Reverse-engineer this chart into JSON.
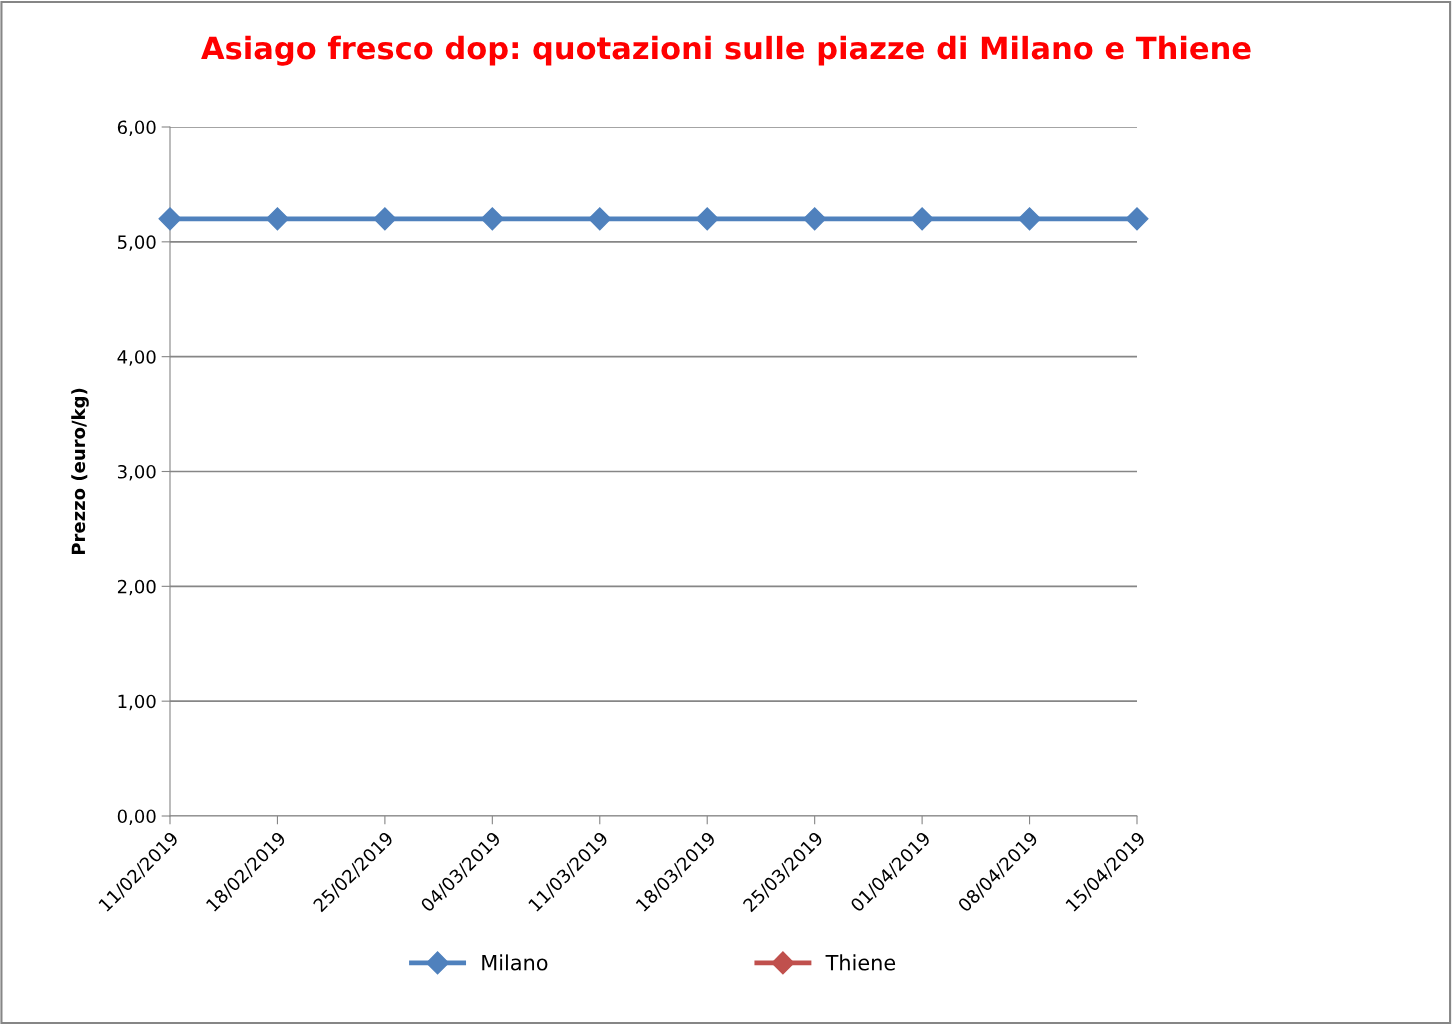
{
  "chart_data": {
    "type": "line",
    "title": "Asiago fresco dop: quotazioni sulle piazze di Milano e Thiene",
    "ylabel": "Prezzo (euro/kg)",
    "categories": [
      "11/02/2019",
      "18/02/2019",
      "25/02/2019",
      "04/03/2019",
      "11/03/2019",
      "18/03/2019",
      "25/03/2019",
      "01/04/2019",
      "08/04/2019",
      "15/04/2019"
    ],
    "series": [
      {
        "name": "Milano",
        "color": "#4f81bd",
        "values": [
          5.2,
          5.2,
          5.2,
          5.2,
          5.2,
          5.2,
          5.2,
          5.2,
          5.2,
          5.2
        ]
      },
      {
        "name": "Thiene",
        "color": "#c0504d",
        "values": [
          null,
          null,
          null,
          null,
          null,
          null,
          null,
          null,
          null,
          null
        ]
      }
    ],
    "ylim": [
      0,
      6
    ],
    "yticks": [
      {
        "value": 0,
        "label": "0,00"
      },
      {
        "value": 1,
        "label": "1,00"
      },
      {
        "value": 2,
        "label": "2,00"
      },
      {
        "value": 3,
        "label": "3,00"
      },
      {
        "value": 4,
        "label": "4,00"
      },
      {
        "value": 5,
        "label": "5,00"
      },
      {
        "value": 6,
        "label": "6,00"
      }
    ],
    "grid": "y",
    "legend": "bottom",
    "marker": "diamond",
    "line_style": "solid"
  }
}
